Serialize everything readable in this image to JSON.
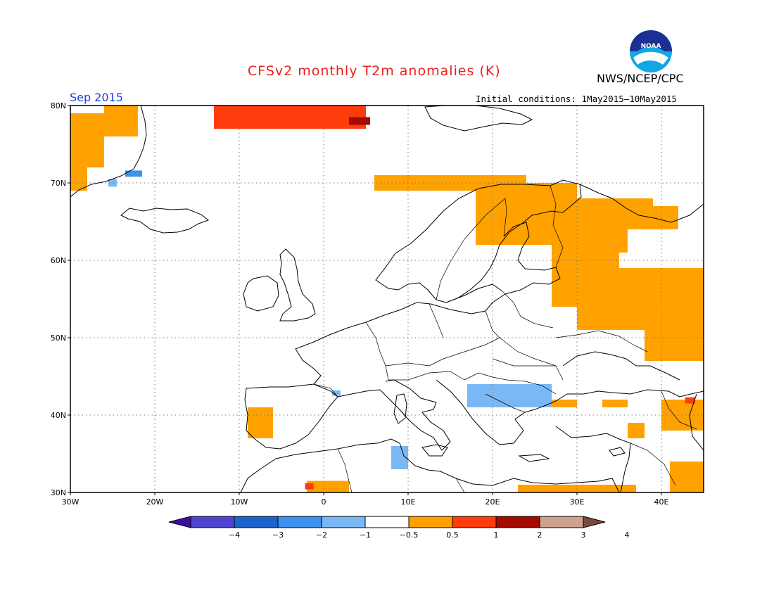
{
  "header": {
    "title": "CFSv2 monthly T2m anomalies (K)",
    "agency": "NWS/NCEP/CPC",
    "period": "Sep 2015",
    "initial_conditions": "Initial conditions: 1May2015—10May2015",
    "logo_text": "NOAA"
  },
  "map": {
    "lon_range": [
      -30,
      45
    ],
    "lat_range": [
      30,
      80
    ],
    "lon_ticks": [
      {
        "v": -30,
        "label": "30W"
      },
      {
        "v": -20,
        "label": "20W"
      },
      {
        "v": -10,
        "label": "10W"
      },
      {
        "v": 0,
        "label": "0"
      },
      {
        "v": 10,
        "label": "10E"
      },
      {
        "v": 20,
        "label": "20E"
      },
      {
        "v": 30,
        "label": "30E"
      },
      {
        "v": 40,
        "label": "40E"
      }
    ],
    "lat_ticks": [
      {
        "v": 80,
        "label": "80N"
      },
      {
        "v": 70,
        "label": "70N"
      },
      {
        "v": 60,
        "label": "60N"
      },
      {
        "v": 50,
        "label": "50N"
      },
      {
        "v": 40,
        "label": "40N"
      },
      {
        "v": 30,
        "label": "30N"
      }
    ],
    "grid": true
  },
  "legend": {
    "bins": [
      {
        "color": "#3b0fa7"
      },
      {
        "color": "#4e45d2"
      },
      {
        "color": "#1d63cc"
      },
      {
        "color": "#3c90f0"
      },
      {
        "color": "#7ab8f5"
      },
      {
        "color": "#ffffff"
      },
      {
        "color": "#ffa200"
      },
      {
        "color": "#ff3c0b"
      },
      {
        "color": "#a50a00"
      },
      {
        "color": "#cfa18f"
      },
      {
        "color": "#7a4a3a"
      }
    ],
    "labels": [
      "−4",
      "−3",
      "−2",
      "−1",
      "−0.5",
      "0.5",
      "1",
      "2",
      "3",
      "4"
    ]
  },
  "anomaly_regions": [
    {
      "level": 1,
      "lon": [
        -30,
        -26
      ],
      "lat": [
        72,
        79
      ]
    },
    {
      "level": 1,
      "lon": [
        -26,
        -22
      ],
      "lat": [
        76,
        80
      ]
    },
    {
      "level": 1,
      "lon": [
        -30,
        -28
      ],
      "lat": [
        69,
        72
      ]
    },
    {
      "level": -1,
      "lon": [
        -23.5,
        -21.5
      ],
      "lat": [
        70.8,
        71.6
      ]
    },
    {
      "level": -0.5,
      "lon": [
        -25.5,
        -24.5
      ],
      "lat": [
        69.5,
        70.5
      ]
    },
    {
      "level": 2,
      "lon": [
        -13,
        5
      ],
      "lat": [
        77,
        80
      ]
    },
    {
      "level": 3,
      "lon": [
        3,
        5.5
      ],
      "lat": [
        77.5,
        78.5
      ]
    },
    {
      "level": 1,
      "lon": [
        6,
        24
      ],
      "lat": [
        69,
        71
      ]
    },
    {
      "level": 1,
      "lon": [
        18,
        30
      ],
      "lat": [
        62,
        70
      ]
    },
    {
      "level": 1,
      "lon": [
        30,
        36
      ],
      "lat": [
        61,
        68
      ]
    },
    {
      "level": 1,
      "lon": [
        32,
        39
      ],
      "lat": [
        66,
        68
      ]
    },
    {
      "level": 1,
      "lon": [
        36,
        42
      ],
      "lat": [
        64,
        67
      ]
    },
    {
      "level": 1,
      "lon": [
        27,
        35
      ],
      "lat": [
        54,
        62
      ]
    },
    {
      "level": 1,
      "lon": [
        30,
        45
      ],
      "lat": [
        51,
        59
      ]
    },
    {
      "level": 1,
      "lon": [
        38,
        45
      ],
      "lat": [
        47,
        51
      ]
    },
    {
      "level": -0.5,
      "lon": [
        17,
        27
      ],
      "lat": [
        41,
        44
      ]
    },
    {
      "level": 1,
      "lon": [
        -9,
        -6
      ],
      "lat": [
        37,
        41
      ]
    },
    {
      "level": 1,
      "lon": [
        -2,
        3
      ],
      "lat": [
        30,
        31.5
      ]
    },
    {
      "level": 2,
      "lon": [
        -2.2,
        -1.2
      ],
      "lat": [
        30.4,
        31.2
      ]
    },
    {
      "level": -0.5,
      "lon": [
        8,
        10
      ],
      "lat": [
        33,
        36
      ]
    },
    {
      "level": -0.5,
      "lon": [
        1,
        2
      ],
      "lat": [
        42.5,
        43.2
      ]
    },
    {
      "level": 1,
      "lon": [
        23,
        37
      ],
      "lat": [
        30,
        31
      ]
    },
    {
      "level": 1,
      "lon": [
        27,
        30
      ],
      "lat": [
        41,
        42
      ]
    },
    {
      "level": 1,
      "lon": [
        33,
        36
      ],
      "lat": [
        41,
        42
      ]
    },
    {
      "level": 1,
      "lon": [
        40,
        45
      ],
      "lat": [
        38,
        42
      ]
    },
    {
      "level": 2,
      "lon": [
        42.8,
        44
      ],
      "lat": [
        41.5,
        42.3
      ]
    },
    {
      "level": 1,
      "lon": [
        41,
        45
      ],
      "lat": [
        30,
        34
      ]
    },
    {
      "level": 1,
      "lon": [
        36,
        38
      ],
      "lat": [
        37,
        39
      ]
    }
  ]
}
